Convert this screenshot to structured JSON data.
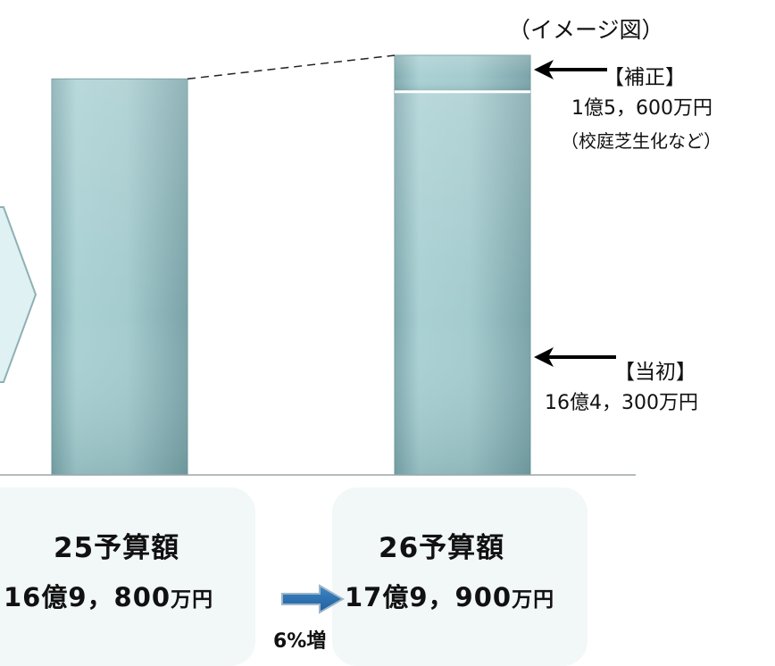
{
  "caption": "（イメージ図）",
  "chart_data": {
    "type": "bar",
    "stacked": true,
    "categories": [
      "25予算額",
      "26予算額"
    ],
    "series": [
      {
        "name": "【当初】",
        "values": [
          169800,
          164300
        ]
      },
      {
        "name": "【補正】",
        "values": [
          0,
          15600
        ]
      }
    ],
    "unit": "万円",
    "grid": false,
    "colors": {
      "bar": "#9cc7cb",
      "bar_dark": "#7aa8ad",
      "top_band": "#8fb7bb"
    }
  },
  "annotations": {
    "hosei": {
      "label": "【補正】",
      "amount": "1億5，600万円",
      "detail": "（校庭芝生化など）"
    },
    "tosho": {
      "label": "【当初】",
      "amount": "16億4，300万円"
    }
  },
  "summary": {
    "left": {
      "title": "25予算額",
      "amount": "16億9，800",
      "unit": "万円"
    },
    "right": {
      "title": "26予算額",
      "amount": "17億9，900",
      "unit": "万円"
    },
    "increase": "6%増"
  }
}
